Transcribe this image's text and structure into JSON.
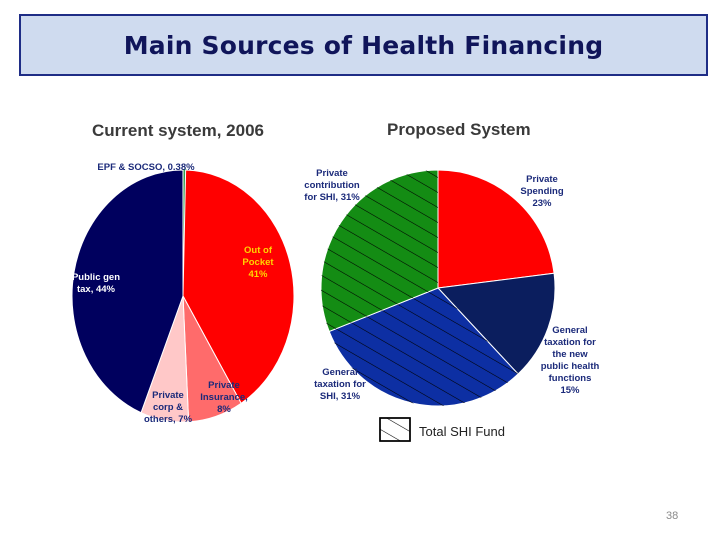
{
  "slide": {
    "title": "Main Sources of Health Financing",
    "page_number": "38"
  },
  "legend": {
    "label": "Total SHI Fund"
  },
  "colors": {
    "title_bar_bg": "#cfdbef",
    "title_bar_border": "#1f2d86",
    "title_text": "#10155a"
  },
  "chart_data": [
    {
      "type": "pie",
      "title": "Current system, 2006",
      "slices": [
        {
          "label_lines": [
            "EPF & SOCSO, 0.38%"
          ],
          "value": 0.38,
          "color": "#2e9c4d",
          "text_color": "#1b2a7a",
          "hatched": false
        },
        {
          "label_lines": [
            "Out of",
            "Pocket",
            "41%"
          ],
          "value": 41,
          "color": "#ff0000",
          "text_color": "#ffd400",
          "hatched": false
        },
        {
          "label_lines": [
            "Private",
            "Insurance,",
            "8%"
          ],
          "value": 8,
          "color": "#ff6b6b",
          "text_color": "#1b2a7a",
          "hatched": false
        },
        {
          "label_lines": [
            "Private",
            "corp &",
            "others, 7%"
          ],
          "value": 7,
          "color": "#ffc8c8",
          "text_color": "#1b2a7a",
          "hatched": false
        },
        {
          "label_lines": [
            "Public gen",
            "tax, 44%"
          ],
          "value": 44,
          "color": "#00005e",
          "text_color": "#ffffff",
          "hatched": false
        }
      ]
    },
    {
      "type": "pie",
      "title": "Proposed System",
      "slices": [
        {
          "label_lines": [
            "Private",
            "Spending",
            "23%"
          ],
          "value": 23,
          "color": "#ff0000",
          "text_color": "#1b2a7a",
          "hatched": false
        },
        {
          "label_lines": [
            "General",
            "taxation for",
            "the new",
            "public health",
            "functions",
            "15%"
          ],
          "value": 15,
          "color": "#0b1e5e",
          "text_color": "#1b2a7a",
          "hatched": false
        },
        {
          "label_lines": [
            "General",
            "taxation for",
            "SHI, 31%"
          ],
          "value": 31,
          "color": "#0d2fa3",
          "text_color": "#1b2a7a",
          "hatched": true
        },
        {
          "label_lines": [
            "Private",
            "contribution",
            "for SHI, 31%"
          ],
          "value": 31,
          "color": "#148c14",
          "text_color": "#1b2a7a",
          "hatched": true
        }
      ]
    }
  ]
}
